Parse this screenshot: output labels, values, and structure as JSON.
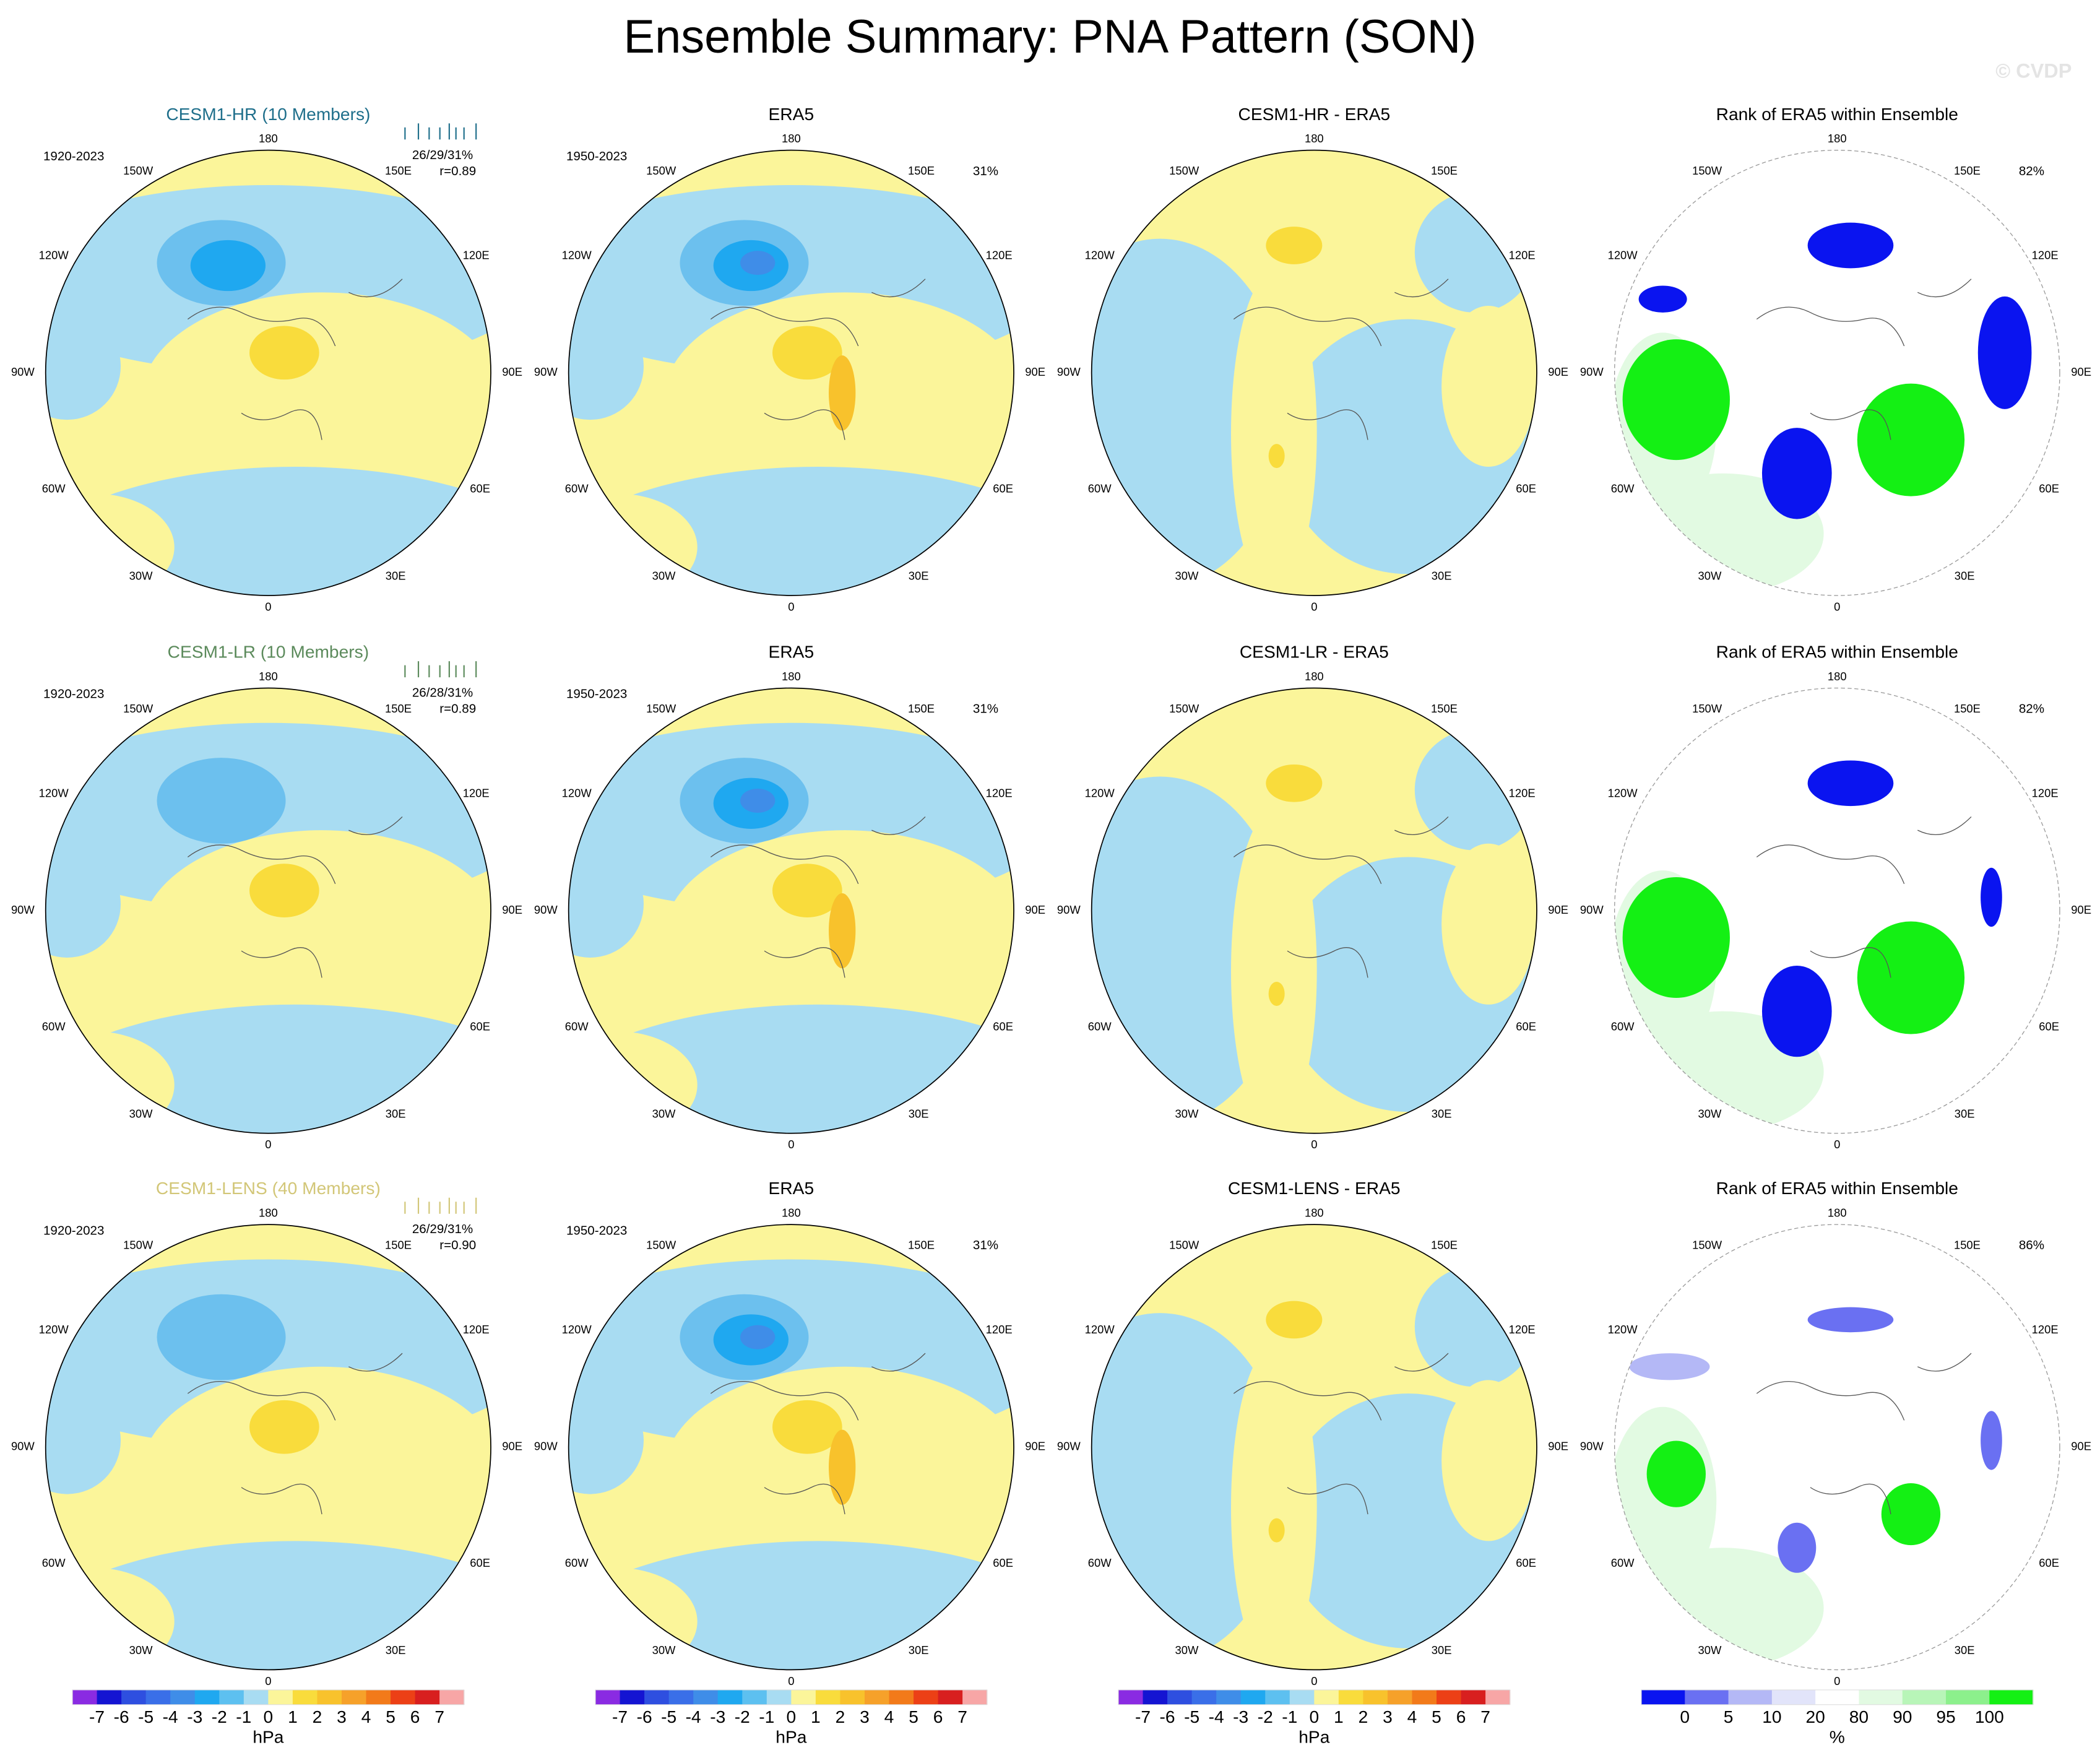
{
  "title": "Ensemble Summary: PNA Pattern (SON)",
  "watermark": "© CVDP",
  "lon_labels": [
    "180",
    "150E",
    "120E",
    "90E",
    "60E",
    "30E",
    "0",
    "30W",
    "60W",
    "90W",
    "120W",
    "150W"
  ],
  "rows": [
    {
      "panels": [
        {
          "title": "CESM1-HR (10 Members)",
          "title_color": "#1f6f8b",
          "period": "1920-2023",
          "stat": "26/29/31%",
          "r": "r=0.89"
        },
        {
          "title": "ERA5",
          "period": "1950-2023",
          "pct": "31%"
        },
        {
          "title": "CESM1-HR - ERA5"
        },
        {
          "title": "Rank of ERA5 within Ensemble",
          "pct": "82%"
        }
      ]
    },
    {
      "panels": [
        {
          "title": "CESM1-LR (10 Members)",
          "title_color": "#5b8a5b",
          "period": "1920-2023",
          "stat": "26/28/31%",
          "r": "r=0.89"
        },
        {
          "title": "ERA5",
          "period": "1950-2023",
          "pct": "31%"
        },
        {
          "title": "CESM1-LR - ERA5"
        },
        {
          "title": "Rank of ERA5 within Ensemble",
          "pct": "82%"
        }
      ]
    },
    {
      "panels": [
        {
          "title": "CESM1-LENS (40 Members)",
          "title_color": "#d2c677",
          "period": "1920-2023",
          "stat": "26/29/31%",
          "r": "r=0.90"
        },
        {
          "title": "ERA5",
          "period": "1950-2023",
          "pct": "31%"
        },
        {
          "title": "CESM1-LENS - ERA5"
        },
        {
          "title": "Rank of ERA5 within Ensemble",
          "pct": "86%"
        }
      ]
    }
  ],
  "colorbars": [
    {
      "ticks": [
        -7,
        -6,
        -5,
        -4,
        -3,
        -2,
        -1,
        0,
        1,
        2,
        3,
        4,
        5,
        6,
        7
      ],
      "unit": "hPa",
      "colors": [
        "#8a2be2",
        "#1414d2",
        "#2e4fe0",
        "#3a6fe8",
        "#3f8de8",
        "#1fa8f0",
        "#5dc0f0",
        "#a8dcf2",
        "#fbf59a",
        "#f9dc3c",
        "#f8c22c",
        "#f6a12a",
        "#f27a1a",
        "#ec4016",
        "#d81f1f",
        "#f7a6a6"
      ]
    },
    {
      "ticks": [
        -7,
        -6,
        -5,
        -4,
        -3,
        -2,
        -1,
        0,
        1,
        2,
        3,
        4,
        5,
        6,
        7
      ],
      "unit": "hPa",
      "colors": [
        "#8a2be2",
        "#1414d2",
        "#2e4fe0",
        "#3a6fe8",
        "#3f8de8",
        "#1fa8f0",
        "#5dc0f0",
        "#a8dcf2",
        "#fbf59a",
        "#f9dc3c",
        "#f8c22c",
        "#f6a12a",
        "#f27a1a",
        "#ec4016",
        "#d81f1f",
        "#f7a6a6"
      ]
    },
    {
      "ticks": [
        -7,
        -6,
        -5,
        -4,
        -3,
        -2,
        -1,
        0,
        1,
        2,
        3,
        4,
        5,
        6,
        7
      ],
      "unit": "hPa",
      "colors": [
        "#8a2be2",
        "#1414d2",
        "#2e4fe0",
        "#3a6fe8",
        "#3f8de8",
        "#1fa8f0",
        "#5dc0f0",
        "#a8dcf2",
        "#fbf59a",
        "#f9dc3c",
        "#f8c22c",
        "#f6a12a",
        "#f27a1a",
        "#ec4016",
        "#d81f1f",
        "#f7a6a6"
      ]
    },
    {
      "ticks": [
        0,
        5,
        10,
        20,
        80,
        90,
        95,
        100
      ],
      "unit": "%",
      "colors": [
        "#0a14f0",
        "#6a70f2",
        "#b4b8f6",
        "#e2e4fa",
        "#ffffff",
        "#e2fae2",
        "#b8f5b8",
        "#8cf08c",
        "#14f014"
      ]
    }
  ]
}
